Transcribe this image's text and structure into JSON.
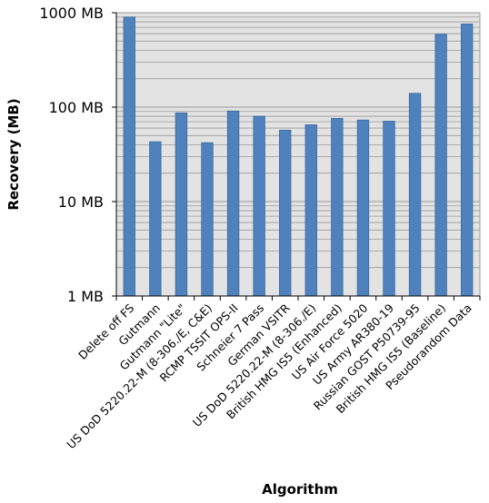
{
  "chart_data": {
    "type": "bar",
    "title": "",
    "xlabel": "Algorithm",
    "ylabel": "Recovery (MB)",
    "yscale": "log",
    "ylim": [
      1,
      1000
    ],
    "yticks": [
      {
        "value": 1,
        "label": "1 MB"
      },
      {
        "value": 10,
        "label": "10 MB"
      },
      {
        "value": 100,
        "label": "100 MB"
      },
      {
        "value": 1000,
        "label": "1000 MB"
      }
    ],
    "grid": true,
    "legend": "none",
    "categories": [
      "Delete off FS",
      "Gutmann",
      "Gutmann \"Lite\"",
      "US DoD 5220.22-M (8-306./E, C&E)",
      "RCMP TSSIT OPS-II",
      "Schneier 7 Pass",
      "German VSITR",
      "US DoD 5220.22-M (8-306./E)",
      "British HMG IS5 (Enhanced)",
      "US Air Force 5020",
      "US Army AR380-19",
      "Russian GOST P50739-95",
      "British HMG IS5 (Baseline)",
      "Pseudorandom Data"
    ],
    "values": [
      900,
      43,
      87,
      42,
      91,
      80,
      57,
      65,
      76,
      73,
      71,
      140,
      590,
      760
    ],
    "colors": {
      "bar_fill": "#4f81bd",
      "bar_stroke": "#3a6aa0",
      "plot_bg": "#e3e3e3",
      "grid": "#9a9a9a",
      "axis": "#000000"
    }
  }
}
